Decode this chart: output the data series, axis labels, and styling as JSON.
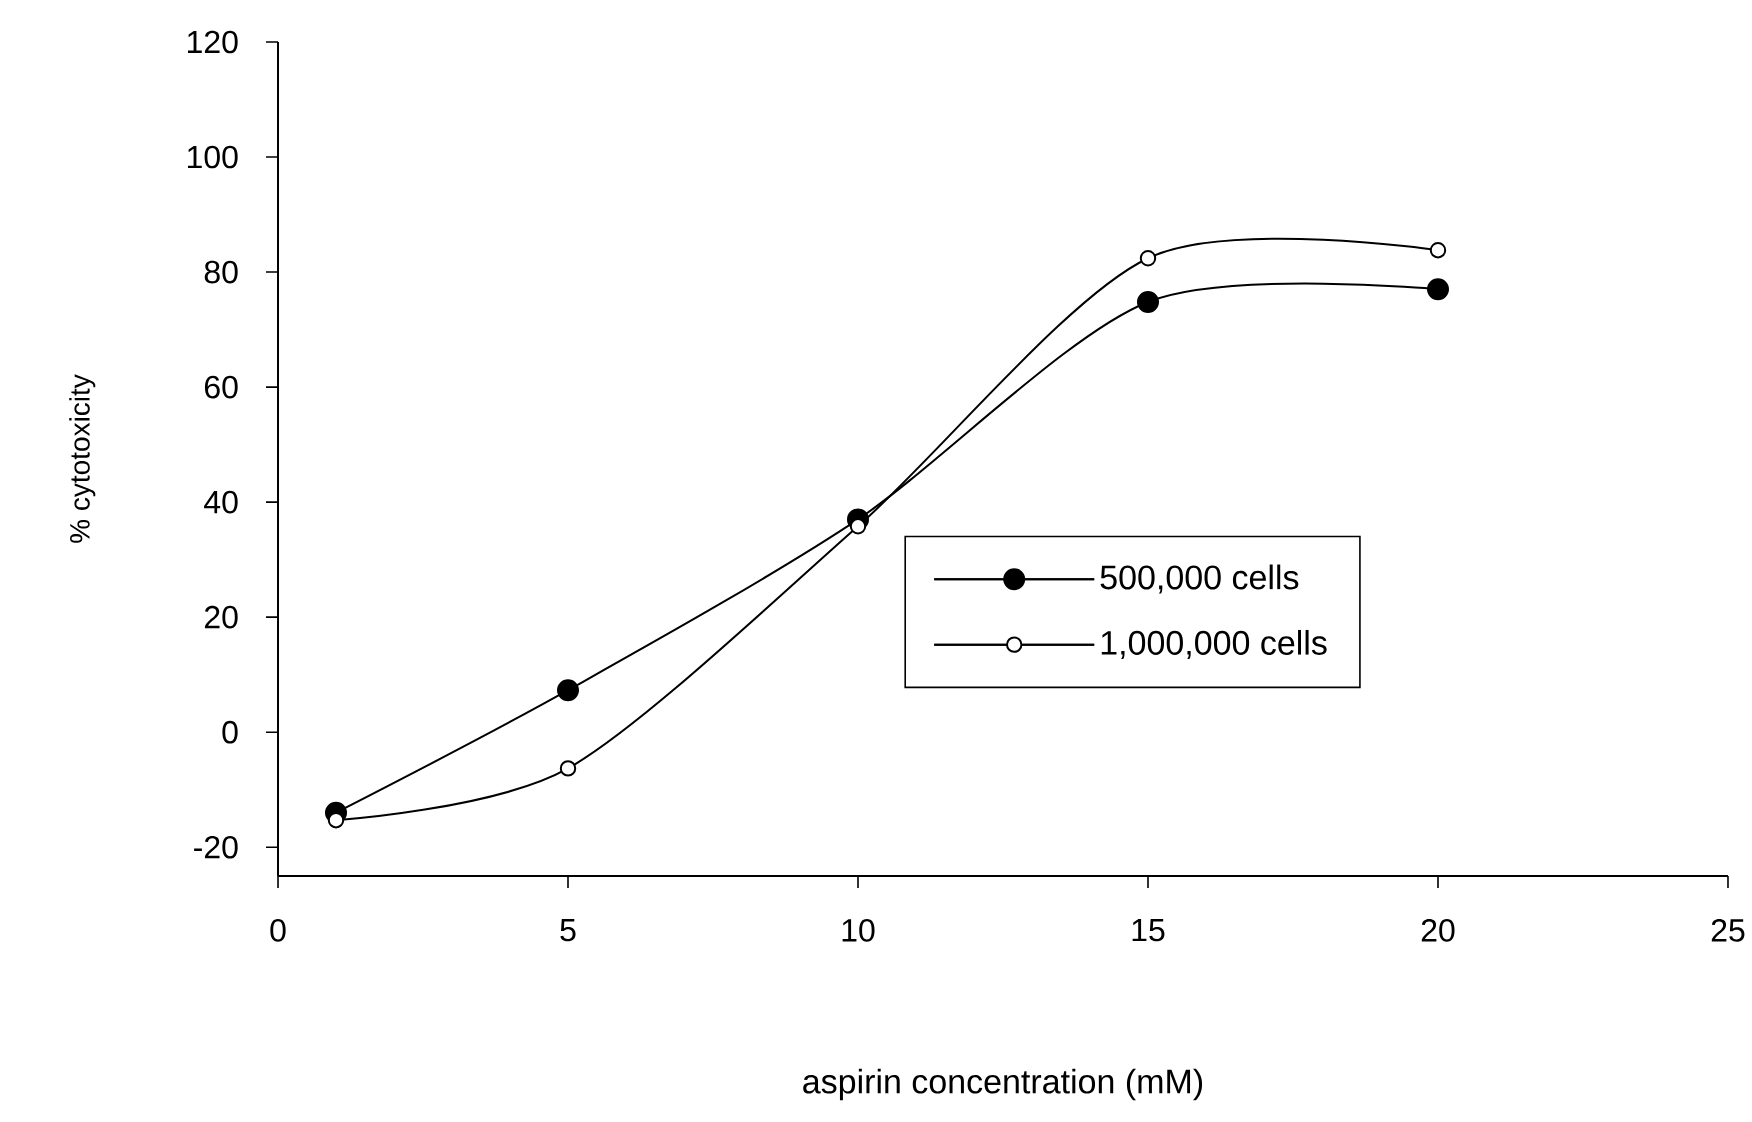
{
  "chart_data": {
    "type": "line",
    "xlabel": "aspirin concentration (mM)",
    "ylabel": "% cytotoxicity",
    "xlim": [
      0,
      25
    ],
    "xticks": [
      0,
      5,
      10,
      15,
      20,
      25
    ],
    "ylim": [
      -25,
      120
    ],
    "yticks": [
      -20,
      0,
      20,
      40,
      60,
      80,
      100,
      120
    ],
    "x": [
      1,
      5,
      10,
      15,
      20
    ],
    "marker": "circle",
    "line_style": "solid",
    "legend": "right",
    "grid": false,
    "series": [
      {
        "name": "500,000 cells",
        "color": "#000000",
        "values": [
          -14,
          7.3,
          37,
          74.8,
          77
        ]
      },
      {
        "name": "1,000,000 cells",
        "color": "#000000",
        "values": [
          -15.3,
          -6.3,
          35.8,
          82.4,
          83.8
        ]
      }
    ]
  }
}
